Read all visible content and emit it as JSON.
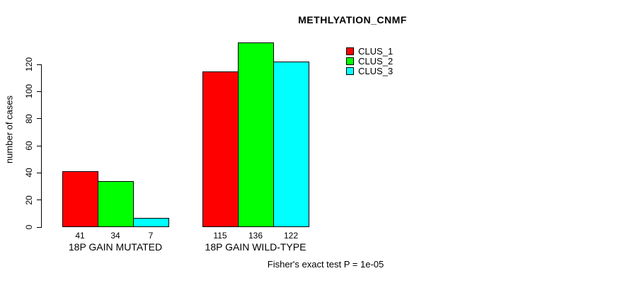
{
  "chart_data": {
    "type": "bar",
    "title": "METHLYATION_CNMF",
    "ylabel": "number of cases",
    "xlabel": "",
    "footer": "Fisher's exact test P = 1e-05",
    "categories": [
      "18P GAIN MUTATED",
      "18P GAIN WILD-TYPE"
    ],
    "series": [
      {
        "name": "CLUS_1",
        "color": "#FF0000",
        "values": [
          41,
          115
        ]
      },
      {
        "name": "CLUS_2",
        "color": "#00FF00",
        "values": [
          34,
          136
        ]
      },
      {
        "name": "CLUS_3",
        "color": "#00FFFF",
        "values": [
          7,
          122
        ]
      }
    ],
    "bar_value_labels": [
      [
        "41",
        "34",
        "7"
      ],
      [
        "115",
        "136",
        "122"
      ]
    ],
    "yticks": [
      0,
      20,
      40,
      60,
      80,
      100,
      120
    ],
    "ylim": [
      0,
      140
    ],
    "grid": false,
    "legend_position": "top-right",
    "bar_border_color": "#000000",
    "background_color": "#FFFFFF",
    "text_color": "#000000"
  }
}
